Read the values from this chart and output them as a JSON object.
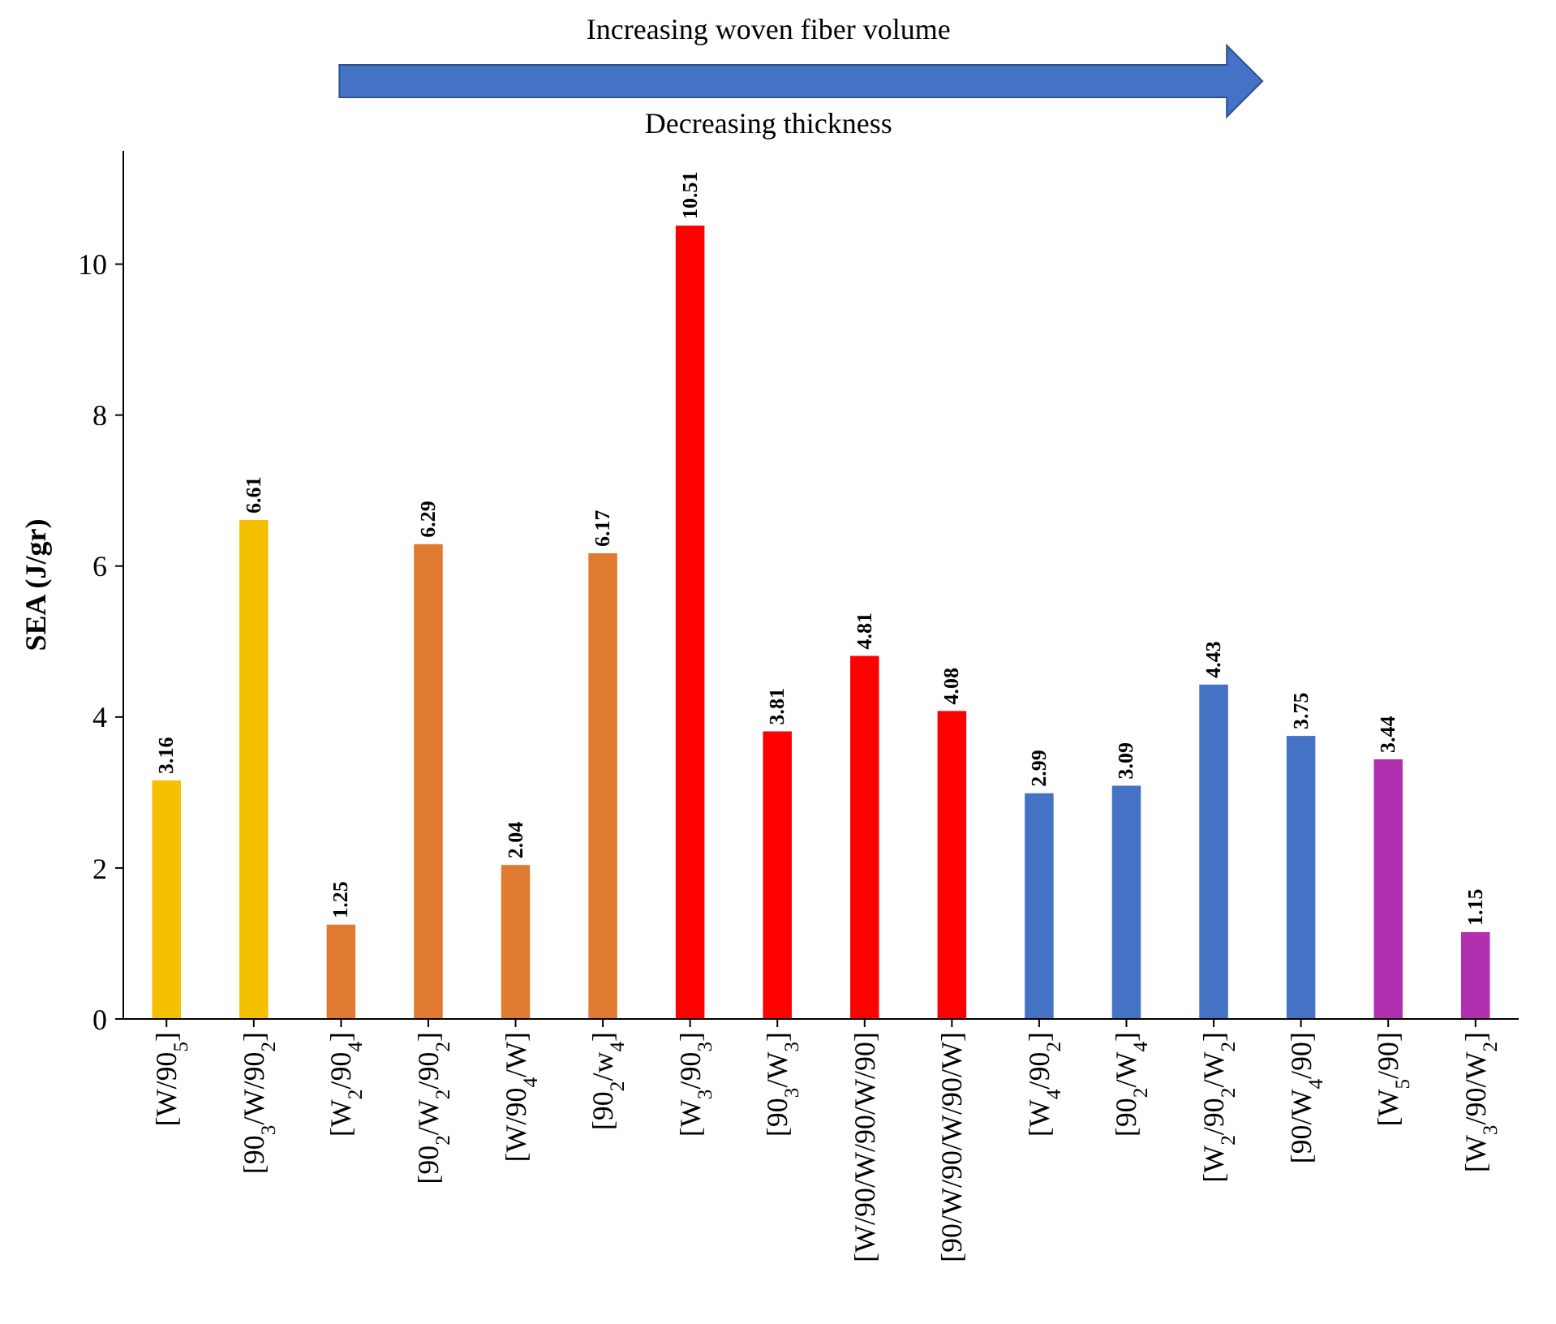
{
  "chart_data": {
    "type": "bar",
    "ylabel": "SEA (J/gr)",
    "categories": [
      "[W/90$_{5}$]",
      "[90$_{3}$/W/90$_{2}$]",
      "[W$_{2}$/90$_{4}$]",
      "[90$_{2}$/W$_{2}$/90$_{2}$]",
      "[W/90$_{4}$/W]",
      "[90$_{2}$/w$_{4}$]",
      "[W$_{3}$/90$_{3}$]",
      "[90$_{3}$/W$_{3}$]",
      "[W/90/W/90/W/90]",
      "[90/W/90/W/90/W]",
      "[W$_{4}$/90$_{2}$]",
      "[90$_{2}$/W$_{4}$]",
      "[W$_{2}$/90$_{2}$/W$_{2}$]",
      "[90/W$_{4}$/90]",
      "[W$_{5}$/90]",
      "[W$_{3}$/90/W$_{2}$]"
    ],
    "values": [
      3.16,
      6.61,
      1.25,
      6.29,
      2.04,
      6.17,
      10.51,
      3.81,
      4.81,
      4.08,
      2.99,
      3.09,
      4.43,
      3.75,
      3.44,
      1.15
    ],
    "colors": [
      "#f5c000",
      "#f5c000",
      "#e07a30",
      "#e07a30",
      "#e07a30",
      "#e07a30",
      "#ff0000",
      "#ff0000",
      "#ff0000",
      "#ff0000",
      "#4472c4",
      "#4472c4",
      "#4472c4",
      "#4472c4",
      "#b030b0",
      "#b030b0"
    ],
    "ylim": [
      0,
      11.5
    ],
    "yticks": [
      0,
      2,
      4,
      6,
      8,
      10
    ],
    "grid": false,
    "data_labels": true,
    "annotations": [
      "Increasing woven fiber volume",
      "Decreasing thickness"
    ]
  }
}
